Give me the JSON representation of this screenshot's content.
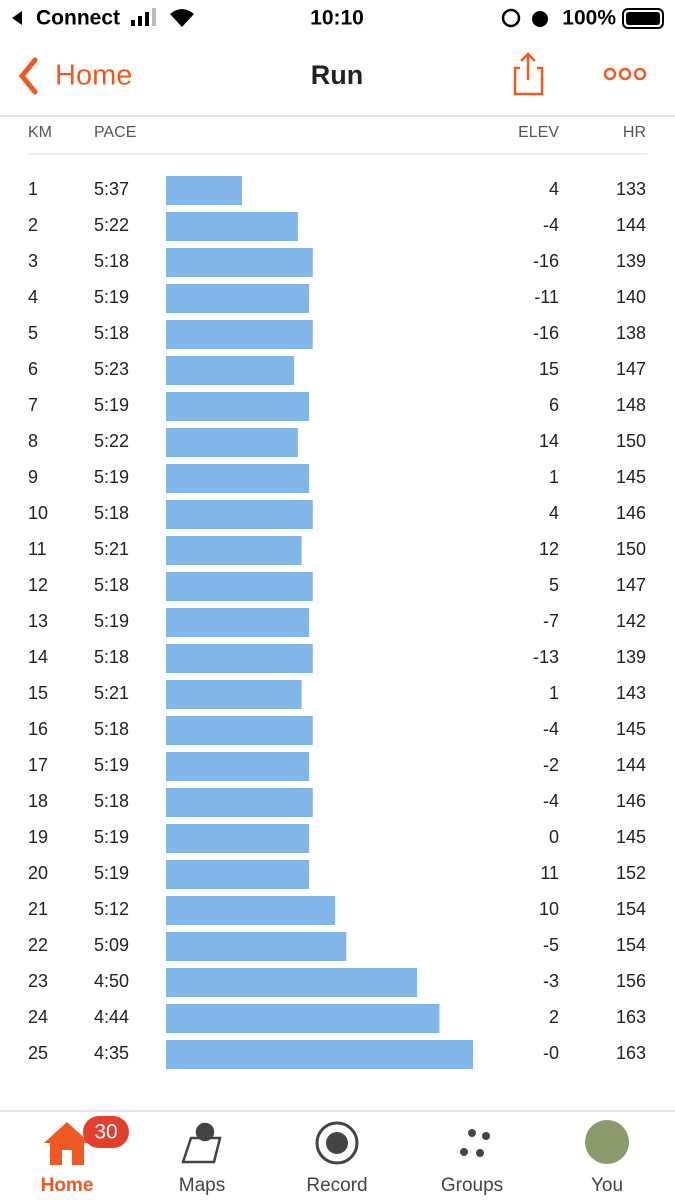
{
  "status_bar": {
    "carrier": "Connect",
    "time": "10:10",
    "battery": "100%"
  },
  "nav": {
    "back": "Home",
    "title": "Run"
  },
  "table": {
    "columns": [
      "KM",
      "PACE",
      "ELEV",
      "HR"
    ],
    "rows": [
      [
        "1",
        "5:37",
        "4",
        "133"
      ],
      [
        "2",
        "5:22",
        "-4",
        "144"
      ],
      [
        "3",
        "5:18",
        "-16",
        "139"
      ],
      [
        "4",
        "5:19",
        "-11",
        "140"
      ],
      [
        "5",
        "5:18",
        "-16",
        "138"
      ],
      [
        "6",
        "5:23",
        "15",
        "147"
      ],
      [
        "7",
        "5:19",
        "6",
        "148"
      ],
      [
        "8",
        "5:22",
        "14",
        "150"
      ],
      [
        "9",
        "5:19",
        "1",
        "145"
      ],
      [
        "10",
        "5:18",
        "4",
        "146"
      ],
      [
        "11",
        "5:21",
        "12",
        "150"
      ],
      [
        "12",
        "5:18",
        "5",
        "147"
      ],
      [
        "13",
        "5:19",
        "-7",
        "142"
      ],
      [
        "14",
        "5:18",
        "-13",
        "139"
      ],
      [
        "15",
        "5:21",
        "1",
        "143"
      ],
      [
        "16",
        "5:18",
        "-4",
        "145"
      ],
      [
        "17",
        "5:19",
        "-2",
        "144"
      ],
      [
        "18",
        "5:18",
        "-4",
        "146"
      ],
      [
        "19",
        "5:19",
        "0",
        "145"
      ],
      [
        "20",
        "5:19",
        "11",
        "152"
      ],
      [
        "21",
        "5:12",
        "10",
        "154"
      ],
      [
        "22",
        "5:09",
        "-5",
        "154"
      ],
      [
        "23",
        "4:50",
        "-3",
        "156"
      ],
      [
        "24",
        "4:44",
        "2",
        "163"
      ],
      [
        "25",
        "4:35",
        "-0",
        "163"
      ]
    ]
  },
  "tab_bar": {
    "tabs": [
      {
        "label": "Home",
        "badge": "30"
      },
      {
        "label": "Maps"
      },
      {
        "label": "Record"
      },
      {
        "label": "Groups"
      },
      {
        "label": "You"
      }
    ]
  }
}
